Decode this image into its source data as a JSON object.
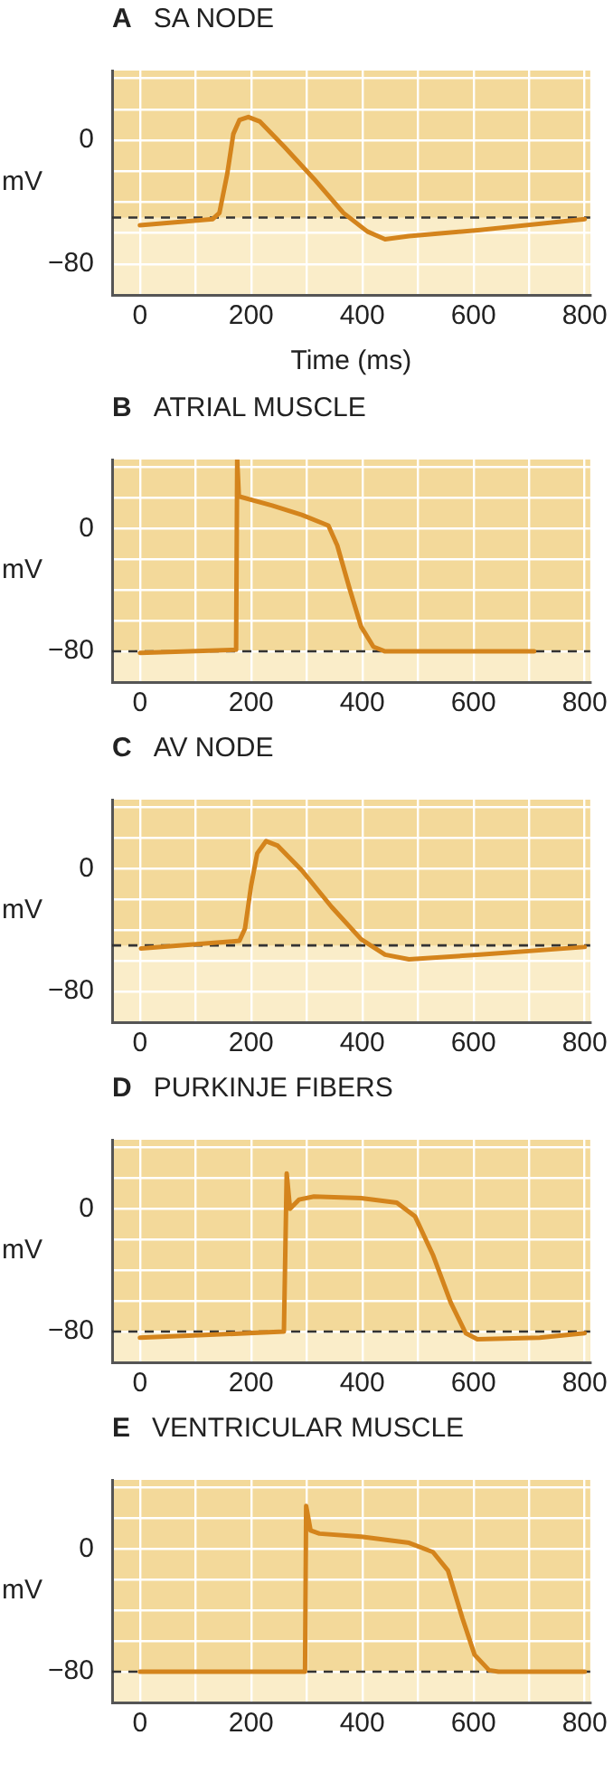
{
  "chart_data": [
    {
      "type": "line",
      "title": "A SA NODE",
      "xlabel": "Time (ms)",
      "ylabel": "mV",
      "xlim": [
        -50,
        810
      ],
      "ylim": [
        -100,
        45
      ],
      "xticks": [
        0,
        {
          "value": 100,
          "label": null
        },
        200,
        {
          "value": 300,
          "label": null
        },
        400,
        {
          "value": 500,
          "label": null
        },
        600,
        {
          "value": 700,
          "label": null
        },
        800
      ],
      "yticks": [
        {
          "value": -100,
          "label": null
        },
        {
          "value": -80,
          "label": "−80"
        },
        {
          "value": -60,
          "label": null
        },
        {
          "value": -40,
          "label": null
        },
        {
          "value": -20,
          "label": null
        },
        {
          "value": 0,
          "label": "0"
        },
        {
          "value": 20,
          "label": null
        },
        {
          "value": 40,
          "label": null
        }
      ],
      "grid": true,
      "marker": "none",
      "line_style": "solid",
      "ref_lines": [
        {
          "axis": "y",
          "value": -50,
          "line_style": "dashed",
          "color": "#333333"
        }
      ],
      "bands": [
        {
          "axis": "y",
          "from": -100,
          "to": -50,
          "color": "#faedc9"
        }
      ],
      "series": [
        {
          "color": "#d4841c",
          "x": [
            0,
            131,
            143,
            157,
            168,
            179,
            195,
            216,
            259,
            313,
            366,
            409,
            441,
            484,
            612,
            800
          ],
          "values": [
            -55,
            -51,
            -47,
            -22,
            4,
            13,
            15,
            12,
            -4,
            -25,
            -47,
            -59,
            -64,
            -62,
            -58,
            -51
          ]
        }
      ]
    },
    {
      "type": "line",
      "title": "B ATRIAL MUSCLE",
      "ylabel": "mV",
      "xlim": [
        -50,
        810
      ],
      "ylim": [
        -100,
        45
      ],
      "xticks": [
        0,
        {
          "value": 100,
          "label": null
        },
        200,
        {
          "value": 300,
          "label": null
        },
        400,
        {
          "value": 500,
          "label": null
        },
        600,
        {
          "value": 700,
          "label": null
        },
        800
      ],
      "yticks": [
        {
          "value": -100,
          "label": null
        },
        {
          "value": -80,
          "label": "−80"
        },
        {
          "value": -60,
          "label": null
        },
        {
          "value": -40,
          "label": null
        },
        {
          "value": -20,
          "label": null
        },
        {
          "value": 0,
          "label": "0"
        },
        {
          "value": 20,
          "label": null
        },
        {
          "value": 40,
          "label": null
        }
      ],
      "grid": true,
      "marker": "none",
      "line_style": "solid",
      "ref_lines": [
        {
          "axis": "y",
          "value": -80,
          "line_style": "dashed",
          "color": "#333333"
        }
      ],
      "bands": [
        {
          "axis": "y",
          "from": -100,
          "to": -80,
          "color": "#faedc9"
        }
      ],
      "series": [
        {
          "color": "#d4841c",
          "x": [
            0,
            173,
            175,
            178,
            238,
            291,
            339,
            355,
            377,
            398,
            420,
            441,
            709
          ],
          "values": [
            -81,
            -79,
            45,
            21,
            15,
            9,
            2,
            -11,
            -39,
            -64,
            -77,
            -80,
            -80
          ]
        }
      ]
    },
    {
      "type": "line",
      "title": "C AV NODE",
      "ylabel": "mV",
      "xlim": [
        -50,
        810
      ],
      "ylim": [
        -100,
        45
      ],
      "xticks": [
        0,
        {
          "value": 100,
          "label": null
        },
        200,
        {
          "value": 300,
          "label": null
        },
        400,
        {
          "value": 500,
          "label": null
        },
        600,
        {
          "value": 700,
          "label": null
        },
        800
      ],
      "yticks": [
        {
          "value": -100,
          "label": null
        },
        {
          "value": -80,
          "label": "−80"
        },
        {
          "value": -60,
          "label": null
        },
        {
          "value": -40,
          "label": null
        },
        {
          "value": -20,
          "label": null
        },
        {
          "value": 0,
          "label": "0"
        },
        {
          "value": 20,
          "label": null
        },
        {
          "value": 40,
          "label": null
        }
      ],
      "grid": true,
      "marker": "none",
      "line_style": "solid",
      "ref_lines": [
        {
          "axis": "y",
          "value": -50,
          "line_style": "dashed",
          "color": "#333333"
        }
      ],
      "bands": [
        {
          "axis": "y",
          "from": -100,
          "to": -50,
          "color": "#faedc9"
        }
      ],
      "series": [
        {
          "color": "#d4841c",
          "x": [
            2,
            179,
            189,
            200,
            211,
            227,
            248,
            291,
            345,
            398,
            441,
            484,
            612,
            800
          ],
          "values": [
            -52,
            -47,
            -39,
            -11,
            10,
            18,
            15,
            -1,
            -25,
            -46,
            -56,
            -59,
            -56,
            -51
          ]
        }
      ]
    },
    {
      "type": "line",
      "title": "D PURKINJE FIBERS",
      "ylabel": "mV",
      "xlim": [
        -50,
        810
      ],
      "ylim": [
        -100,
        45
      ],
      "xticks": [
        0,
        {
          "value": 100,
          "label": null
        },
        200,
        {
          "value": 300,
          "label": null
        },
        400,
        {
          "value": 500,
          "label": null
        },
        600,
        {
          "value": 700,
          "label": null
        },
        800
      ],
      "yticks": [
        {
          "value": -100,
          "label": null
        },
        {
          "value": -80,
          "label": "−80"
        },
        {
          "value": -60,
          "label": null
        },
        {
          "value": -40,
          "label": null
        },
        {
          "value": -20,
          "label": null
        },
        {
          "value": 0,
          "label": "0"
        },
        {
          "value": 20,
          "label": null
        },
        {
          "value": 40,
          "label": null
        }
      ],
      "grid": true,
      "marker": "none",
      "line_style": "solid",
      "ref_lines": [
        {
          "axis": "y",
          "value": -80,
          "line_style": "dashed",
          "color": "#333333"
        }
      ],
      "bands": [
        {
          "axis": "y",
          "from": -100,
          "to": -80,
          "color": "#faedc9"
        }
      ],
      "series": [
        {
          "color": "#d4841c",
          "x": [
            0,
            259,
            264,
            270,
            286,
            313,
            398,
            462,
            495,
            527,
            559,
            586,
            607,
            719,
            800
          ],
          "values": [
            -84,
            -80,
            23,
            0,
            6,
            8,
            7,
            4,
            -5,
            -30,
            -61,
            -81,
            -85,
            -84,
            -81
          ]
        }
      ]
    },
    {
      "type": "line",
      "title": "E VENTRICULAR MUSCLE",
      "ylabel": "mV",
      "xlim": [
        -50,
        810
      ],
      "ylim": [
        -100,
        45
      ],
      "xticks": [
        0,
        {
          "value": 100,
          "label": null
        },
        200,
        {
          "value": 300,
          "label": null
        },
        400,
        {
          "value": 500,
          "label": null
        },
        600,
        {
          "value": 700,
          "label": null
        },
        800
      ],
      "yticks": [
        {
          "value": -100,
          "label": null
        },
        {
          "value": -80,
          "label": "−80"
        },
        {
          "value": -60,
          "label": null
        },
        {
          "value": -40,
          "label": null
        },
        {
          "value": -20,
          "label": null
        },
        {
          "value": 0,
          "label": "0"
        },
        {
          "value": 20,
          "label": null
        },
        {
          "value": 40,
          "label": null
        }
      ],
      "grid": true,
      "marker": "none",
      "line_style": "solid",
      "ref_lines": [
        {
          "axis": "y",
          "value": -80,
          "line_style": "dashed",
          "color": "#333333"
        }
      ],
      "bands": [
        {
          "axis": "y",
          "from": -100,
          "to": -80,
          "color": "#faedc9"
        }
      ],
      "series": [
        {
          "color": "#d4841c",
          "x": [
            0,
            297,
            299,
            307,
            323,
            398,
            484,
            527,
            554,
            580,
            602,
            628,
            645,
            800
          ],
          "values": [
            -80,
            -80,
            28,
            12,
            10,
            8,
            4,
            -2,
            -14,
            -45,
            -69,
            -79,
            -80,
            -80
          ]
        }
      ]
    }
  ]
}
